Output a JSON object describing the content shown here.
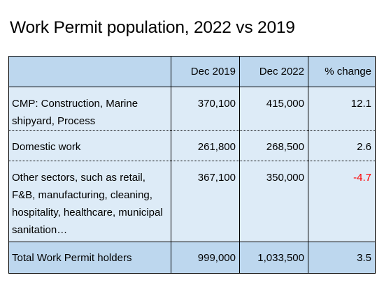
{
  "title": "Work Permit population, 2022 vs 2019",
  "table": {
    "headers": [
      "",
      "Dec 2019",
      "Dec 2022",
      "% change"
    ],
    "rows": [
      {
        "label": "CMP: Construction, Marine shipyard, Process",
        "dec2019": "370,100",
        "dec2022": "415,000",
        "change": "12.1"
      },
      {
        "label": "Domestic work",
        "dec2019": "261,800",
        "dec2022": "268,500",
        "change": "2.6"
      },
      {
        "label": "Other sectors, such as retail, F&B, manufacturing, cleaning, hospitality, healthcare, municipal sanitation…",
        "dec2019": "367,100",
        "dec2022": "350,000",
        "change": "-4.7"
      },
      {
        "label": "Total Work Permit holders",
        "dec2019": "999,000",
        "dec2022": "1,033,500",
        "change": "3.5"
      }
    ]
  },
  "colors": {
    "header_bg": "#bdd7ee",
    "body_bg": "#ddebf7",
    "negative": "#ff0000"
  }
}
